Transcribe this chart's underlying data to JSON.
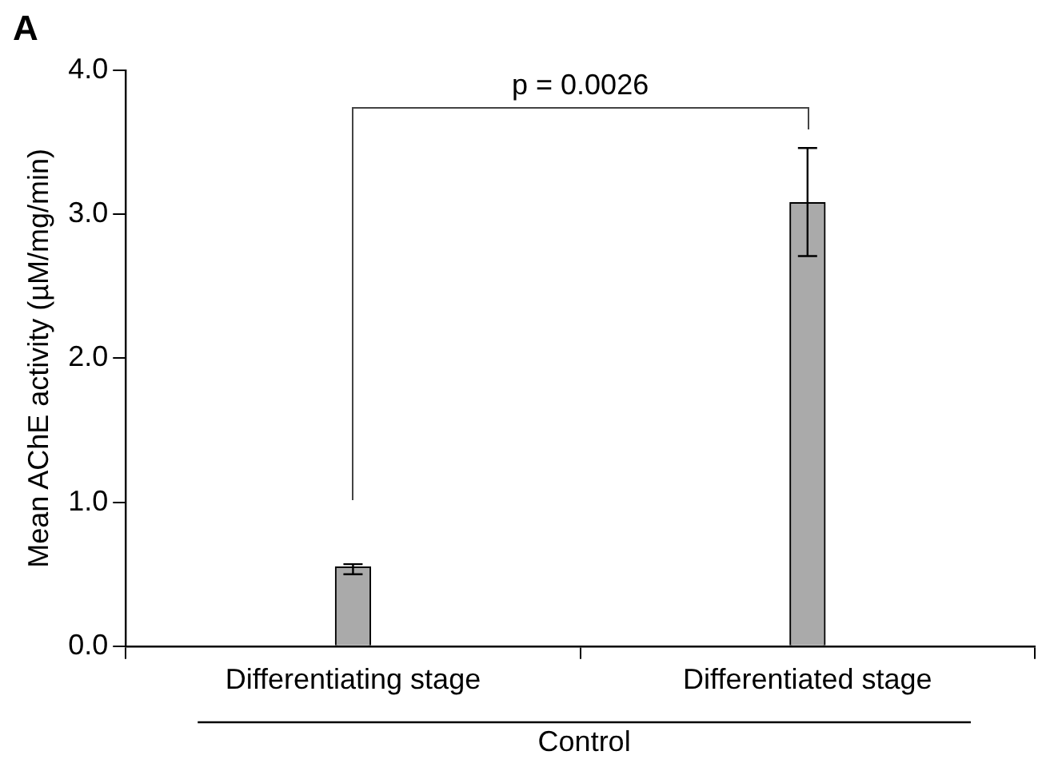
{
  "chart_data": {
    "type": "bar",
    "title": "A",
    "ylabel": "Mean AChE activity (µM/mg/min)",
    "categories": [
      "Differentiating stage",
      "Differentiated stage"
    ],
    "values": [
      0.55,
      3.08
    ],
    "errors": [
      [
        0.5,
        0.57
      ],
      [
        2.71,
        3.46
      ]
    ],
    "color": "#aaaaaa",
    "ylim": [
      0,
      4
    ],
    "yticks": [
      {
        "value": 0,
        "label": "0.0"
      },
      {
        "value": 1,
        "label": "1.0"
      },
      {
        "value": 2,
        "label": "2.0"
      },
      {
        "value": 3,
        "label": "3.0"
      },
      {
        "value": 4,
        "label": "4.0"
      }
    ],
    "grid": false,
    "legend": false,
    "annotations": [
      "p = 0.0026",
      "Control"
    ]
  }
}
